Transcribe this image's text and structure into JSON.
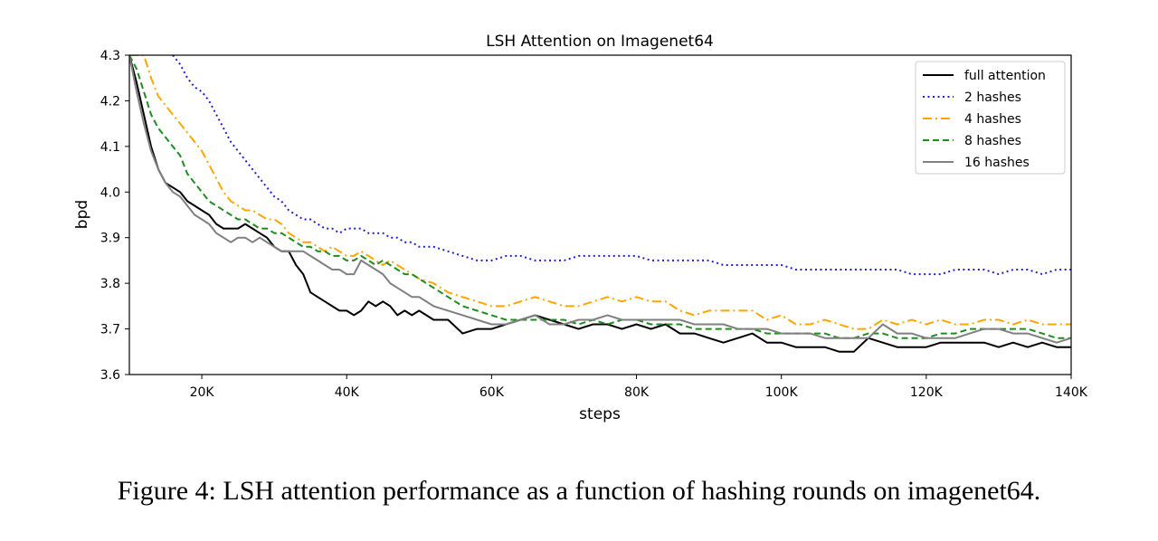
{
  "caption": "Figure 4: LSH attention performance as a function of hashing rounds on imagenet64.",
  "chart_data": {
    "type": "line",
    "title": "LSH Attention on Imagenet64",
    "xlabel": "steps",
    "ylabel": "bpd",
    "xlim": [
      10000,
      140000
    ],
    "ylim": [
      3.6,
      4.3
    ],
    "xticks": [
      {
        "value": 20000,
        "label": "20K"
      },
      {
        "value": 40000,
        "label": "40K"
      },
      {
        "value": 60000,
        "label": "60K"
      },
      {
        "value": 80000,
        "label": "80K"
      },
      {
        "value": 100000,
        "label": "100K"
      },
      {
        "value": 120000,
        "label": "120K"
      },
      {
        "value": 140000,
        "label": "140K"
      }
    ],
    "yticks": [
      {
        "value": 3.6,
        "label": "3.6"
      },
      {
        "value": 3.7,
        "label": "3.7"
      },
      {
        "value": 3.8,
        "label": "3.8"
      },
      {
        "value": 3.9,
        "label": "3.9"
      },
      {
        "value": 4.0,
        "label": "4.0"
      },
      {
        "value": 4.1,
        "label": "4.1"
      },
      {
        "value": 4.2,
        "label": "4.2"
      },
      {
        "value": 4.3,
        "label": "4.3"
      }
    ],
    "grid": false,
    "legend_position": "top-right",
    "series": [
      {
        "name": "full attention",
        "color": "#000000",
        "style": "solid",
        "x": [
          10000,
          11000,
          12000,
          13000,
          14000,
          15000,
          16000,
          17000,
          18000,
          19000,
          20000,
          21000,
          22000,
          23000,
          24000,
          25000,
          26000,
          27000,
          28000,
          29000,
          30000,
          31000,
          32000,
          33000,
          34000,
          35000,
          36000,
          37000,
          38000,
          39000,
          40000,
          41000,
          42000,
          43000,
          44000,
          45000,
          46000,
          47000,
          48000,
          49000,
          50000,
          52000,
          54000,
          56000,
          58000,
          60000,
          62000,
          64000,
          66000,
          68000,
          70000,
          72000,
          74000,
          76000,
          78000,
          80000,
          82000,
          84000,
          86000,
          88000,
          90000,
          92000,
          94000,
          96000,
          98000,
          100000,
          102000,
          104000,
          106000,
          108000,
          110000,
          112000,
          114000,
          116000,
          118000,
          120000,
          122000,
          124000,
          126000,
          128000,
          130000,
          132000,
          134000,
          136000,
          138000,
          140000
        ],
        "y": [
          4.3,
          4.24,
          4.17,
          4.1,
          4.05,
          4.02,
          4.01,
          4.0,
          3.98,
          3.97,
          3.96,
          3.95,
          3.93,
          3.92,
          3.92,
          3.92,
          3.93,
          3.92,
          3.91,
          3.9,
          3.88,
          3.87,
          3.87,
          3.84,
          3.82,
          3.78,
          3.77,
          3.76,
          3.75,
          3.74,
          3.74,
          3.73,
          3.74,
          3.76,
          3.75,
          3.76,
          3.75,
          3.73,
          3.74,
          3.73,
          3.74,
          3.72,
          3.72,
          3.69,
          3.7,
          3.7,
          3.71,
          3.72,
          3.73,
          3.72,
          3.71,
          3.7,
          3.71,
          3.71,
          3.7,
          3.71,
          3.7,
          3.71,
          3.69,
          3.69,
          3.68,
          3.67,
          3.68,
          3.69,
          3.67,
          3.67,
          3.66,
          3.66,
          3.66,
          3.65,
          3.65,
          3.68,
          3.67,
          3.66,
          3.66,
          3.66,
          3.67,
          3.67,
          3.67,
          3.67,
          3.66,
          3.67,
          3.66,
          3.67,
          3.66,
          3.66
        ]
      },
      {
        "name": "2 hashes",
        "color": "#1f1fd8",
        "style": "dotted",
        "x": [
          16000,
          17000,
          18000,
          19000,
          20000,
          21000,
          22000,
          23000,
          24000,
          25000,
          26000,
          27000,
          28000,
          29000,
          30000,
          31000,
          32000,
          33000,
          34000,
          35000,
          36000,
          37000,
          38000,
          39000,
          40000,
          41000,
          42000,
          43000,
          44000,
          45000,
          46000,
          47000,
          48000,
          49000,
          50000,
          52000,
          54000,
          56000,
          58000,
          60000,
          62000,
          64000,
          66000,
          68000,
          70000,
          72000,
          74000,
          76000,
          78000,
          80000,
          82000,
          84000,
          86000,
          88000,
          90000,
          92000,
          94000,
          96000,
          98000,
          100000,
          102000,
          104000,
          106000,
          108000,
          110000,
          112000,
          114000,
          116000,
          118000,
          120000,
          122000,
          124000,
          126000,
          128000,
          130000,
          132000,
          134000,
          136000,
          138000,
          140000
        ],
        "y": [
          4.3,
          4.28,
          4.25,
          4.23,
          4.22,
          4.2,
          4.17,
          4.14,
          4.11,
          4.09,
          4.07,
          4.05,
          4.03,
          4.01,
          3.99,
          3.98,
          3.96,
          3.95,
          3.94,
          3.94,
          3.93,
          3.92,
          3.92,
          3.91,
          3.92,
          3.92,
          3.92,
          3.91,
          3.91,
          3.91,
          3.9,
          3.9,
          3.89,
          3.89,
          3.88,
          3.88,
          3.87,
          3.86,
          3.85,
          3.85,
          3.86,
          3.86,
          3.85,
          3.85,
          3.85,
          3.86,
          3.86,
          3.86,
          3.86,
          3.86,
          3.85,
          3.85,
          3.85,
          3.85,
          3.85,
          3.84,
          3.84,
          3.84,
          3.84,
          3.84,
          3.83,
          3.83,
          3.83,
          3.83,
          3.83,
          3.83,
          3.83,
          3.83,
          3.82,
          3.82,
          3.82,
          3.83,
          3.83,
          3.83,
          3.82,
          3.83,
          3.83,
          3.82,
          3.83,
          3.83
        ]
      },
      {
        "name": "4 hashes",
        "color": "#ffa500",
        "style": "dashdot",
        "x": [
          10000,
          11000,
          12000,
          13000,
          14000,
          15000,
          16000,
          17000,
          18000,
          19000,
          20000,
          21000,
          22000,
          23000,
          24000,
          25000,
          26000,
          27000,
          28000,
          29000,
          30000,
          31000,
          32000,
          33000,
          34000,
          35000,
          36000,
          37000,
          38000,
          39000,
          40000,
          41000,
          42000,
          43000,
          44000,
          45000,
          46000,
          47000,
          48000,
          49000,
          50000,
          52000,
          54000,
          56000,
          58000,
          60000,
          62000,
          64000,
          66000,
          68000,
          70000,
          72000,
          74000,
          76000,
          78000,
          80000,
          82000,
          84000,
          86000,
          88000,
          90000,
          92000,
          94000,
          96000,
          98000,
          100000,
          102000,
          104000,
          106000,
          108000,
          110000,
          112000,
          114000,
          116000,
          118000,
          120000,
          122000,
          124000,
          126000,
          128000,
          130000,
          132000,
          134000,
          136000,
          138000,
          140000
        ],
        "y": [
          4.3,
          4.3,
          4.3,
          4.25,
          4.21,
          4.19,
          4.17,
          4.15,
          4.13,
          4.11,
          4.09,
          4.06,
          4.03,
          4.0,
          3.98,
          3.97,
          3.96,
          3.96,
          3.95,
          3.94,
          3.94,
          3.93,
          3.91,
          3.9,
          3.89,
          3.89,
          3.88,
          3.87,
          3.88,
          3.87,
          3.86,
          3.86,
          3.87,
          3.86,
          3.85,
          3.84,
          3.85,
          3.84,
          3.83,
          3.82,
          3.81,
          3.8,
          3.78,
          3.77,
          3.76,
          3.75,
          3.75,
          3.76,
          3.77,
          3.76,
          3.75,
          3.75,
          3.76,
          3.77,
          3.76,
          3.77,
          3.76,
          3.76,
          3.74,
          3.73,
          3.74,
          3.74,
          3.74,
          3.74,
          3.72,
          3.73,
          3.71,
          3.71,
          3.72,
          3.71,
          3.7,
          3.7,
          3.72,
          3.71,
          3.72,
          3.71,
          3.72,
          3.71,
          3.71,
          3.72,
          3.72,
          3.71,
          3.72,
          3.71,
          3.71,
          3.71
        ]
      },
      {
        "name": "8 hashes",
        "color": "#1f8c1f",
        "style": "dashed",
        "x": [
          10000,
          11000,
          12000,
          13000,
          14000,
          15000,
          16000,
          17000,
          18000,
          19000,
          20000,
          21000,
          22000,
          23000,
          24000,
          25000,
          26000,
          27000,
          28000,
          29000,
          30000,
          31000,
          32000,
          33000,
          34000,
          35000,
          36000,
          37000,
          38000,
          39000,
          40000,
          41000,
          42000,
          43000,
          44000,
          45000,
          46000,
          47000,
          48000,
          49000,
          50000,
          52000,
          54000,
          56000,
          58000,
          60000,
          62000,
          64000,
          66000,
          68000,
          70000,
          72000,
          74000,
          76000,
          78000,
          80000,
          82000,
          84000,
          86000,
          88000,
          90000,
          92000,
          94000,
          96000,
          98000,
          100000,
          102000,
          104000,
          106000,
          108000,
          110000,
          112000,
          114000,
          116000,
          118000,
          120000,
          122000,
          124000,
          126000,
          128000,
          130000,
          132000,
          134000,
          136000,
          138000,
          140000
        ],
        "y": [
          4.3,
          4.27,
          4.22,
          4.17,
          4.14,
          4.12,
          4.1,
          4.08,
          4.04,
          4.02,
          4.0,
          3.98,
          3.97,
          3.96,
          3.95,
          3.94,
          3.94,
          3.93,
          3.92,
          3.92,
          3.91,
          3.91,
          3.9,
          3.89,
          3.88,
          3.88,
          3.87,
          3.87,
          3.86,
          3.86,
          3.85,
          3.85,
          3.86,
          3.85,
          3.84,
          3.85,
          3.84,
          3.83,
          3.82,
          3.82,
          3.81,
          3.79,
          3.77,
          3.75,
          3.74,
          3.73,
          3.72,
          3.72,
          3.72,
          3.72,
          3.72,
          3.71,
          3.72,
          3.71,
          3.72,
          3.72,
          3.71,
          3.71,
          3.71,
          3.7,
          3.7,
          3.7,
          3.7,
          3.7,
          3.69,
          3.69,
          3.69,
          3.69,
          3.69,
          3.68,
          3.68,
          3.69,
          3.69,
          3.68,
          3.68,
          3.68,
          3.69,
          3.69,
          3.7,
          3.7,
          3.7,
          3.7,
          3.7,
          3.69,
          3.68,
          3.68
        ]
      },
      {
        "name": "16 hashes",
        "color": "#808080",
        "style": "solid",
        "x": [
          10000,
          11000,
          12000,
          13000,
          14000,
          15000,
          16000,
          17000,
          18000,
          19000,
          20000,
          21000,
          22000,
          23000,
          24000,
          25000,
          26000,
          27000,
          28000,
          29000,
          30000,
          31000,
          32000,
          33000,
          34000,
          35000,
          36000,
          37000,
          38000,
          39000,
          40000,
          41000,
          42000,
          43000,
          44000,
          45000,
          46000,
          47000,
          48000,
          49000,
          50000,
          52000,
          54000,
          56000,
          58000,
          60000,
          62000,
          64000,
          66000,
          68000,
          70000,
          72000,
          74000,
          76000,
          78000,
          80000,
          82000,
          84000,
          86000,
          88000,
          90000,
          92000,
          94000,
          96000,
          98000,
          100000,
          102000,
          104000,
          106000,
          108000,
          110000,
          112000,
          114000,
          116000,
          118000,
          120000,
          122000,
          124000,
          126000,
          128000,
          130000,
          132000,
          134000,
          136000,
          138000,
          140000
        ],
        "y": [
          4.3,
          4.22,
          4.15,
          4.09,
          4.05,
          4.02,
          4.0,
          3.99,
          3.97,
          3.95,
          3.94,
          3.93,
          3.91,
          3.9,
          3.89,
          3.9,
          3.9,
          3.89,
          3.9,
          3.89,
          3.88,
          3.87,
          3.87,
          3.87,
          3.87,
          3.86,
          3.85,
          3.84,
          3.83,
          3.83,
          3.82,
          3.82,
          3.85,
          3.84,
          3.83,
          3.82,
          3.8,
          3.79,
          3.78,
          3.77,
          3.77,
          3.75,
          3.74,
          3.73,
          3.72,
          3.71,
          3.71,
          3.72,
          3.73,
          3.71,
          3.71,
          3.72,
          3.72,
          3.73,
          3.72,
          3.72,
          3.72,
          3.72,
          3.72,
          3.71,
          3.71,
          3.71,
          3.7,
          3.7,
          3.7,
          3.69,
          3.69,
          3.69,
          3.68,
          3.68,
          3.68,
          3.68,
          3.71,
          3.69,
          3.69,
          3.68,
          3.68,
          3.68,
          3.69,
          3.7,
          3.7,
          3.69,
          3.69,
          3.68,
          3.67,
          3.68
        ]
      }
    ]
  }
}
